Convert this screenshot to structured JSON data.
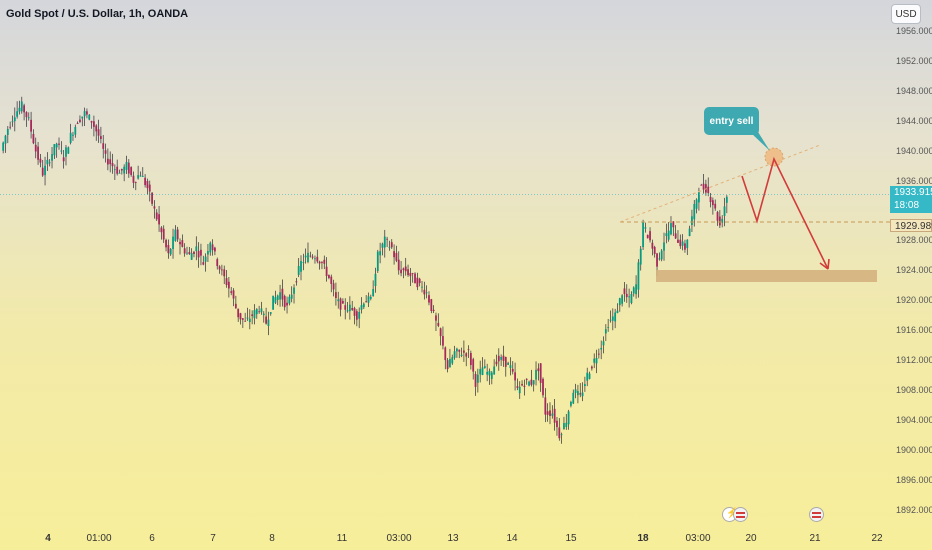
{
  "header": {
    "title": "Gold Spot / U.S. Dollar, 1h, OANDA",
    "currency_button": "USD"
  },
  "price_axis": {
    "ticks": [
      "1956.000",
      "1952.000",
      "1948.000",
      "1944.000",
      "1940.000",
      "1936.000",
      "1928.000",
      "1924.000",
      "1920.000",
      "1916.000",
      "1912.000",
      "1908.000",
      "1904.000",
      "1900.000",
      "1896.000",
      "1892.000"
    ],
    "current_price": "1933.915",
    "countdown": "18:08",
    "level_price": "1929.989"
  },
  "time_axis": {
    "ticks": [
      "4",
      "01:00",
      "6",
      "7",
      "8",
      "11",
      "03:00",
      "13",
      "14",
      "15",
      "18",
      "03:00",
      "20",
      "21",
      "22"
    ],
    "bold_ticks": [
      "4",
      "18"
    ]
  },
  "annotation": {
    "callout_text": "entry sell"
  },
  "colors": {
    "up_candle": "#089981",
    "down_candle": "#a32a5a",
    "current_price": "#36b9c7",
    "arrow": "#d23b3b",
    "zone": "#d4b27e",
    "callout": "#3ea9b0"
  },
  "chart_data": {
    "type": "candlestick",
    "symbol": "Gold Spot / U.S. Dollar",
    "interval": "1h",
    "ylim": [
      1890,
      1958
    ],
    "close_path": [
      1940,
      1943,
      1945,
      1946,
      1944,
      1940,
      1937,
      1939,
      1941,
      1939,
      1942,
      1944,
      1945,
      1944,
      1942,
      1939,
      1938,
      1937,
      1938,
      1936,
      1937,
      1935,
      1932,
      1929,
      1926,
      1929,
      1927,
      1926,
      1927,
      1925,
      1928,
      1925,
      1923,
      1921,
      1918,
      1917,
      1918,
      1919,
      1917,
      1920,
      1921,
      1919,
      1922,
      1925,
      1926,
      1926,
      1925,
      1923,
      1920,
      1919,
      1919,
      1918,
      1920,
      1920,
      1926,
      1928,
      1927,
      1924,
      1924,
      1923,
      1922,
      1921,
      1918,
      1915,
      1911,
      1913,
      1913,
      1913,
      1909,
      1911,
      1910,
      1912,
      1912,
      1911,
      1908,
      1909,
      1909,
      1911,
      1905,
      1905,
      1902,
      1904,
      1908,
      1907,
      1910,
      1912,
      1914,
      1917,
      1918,
      1921,
      1920,
      1922,
      1930,
      1928,
      1925,
      1928,
      1930,
      1928,
      1927,
      1931,
      1935,
      1935,
      1933,
      1930,
      1934
    ]
  }
}
